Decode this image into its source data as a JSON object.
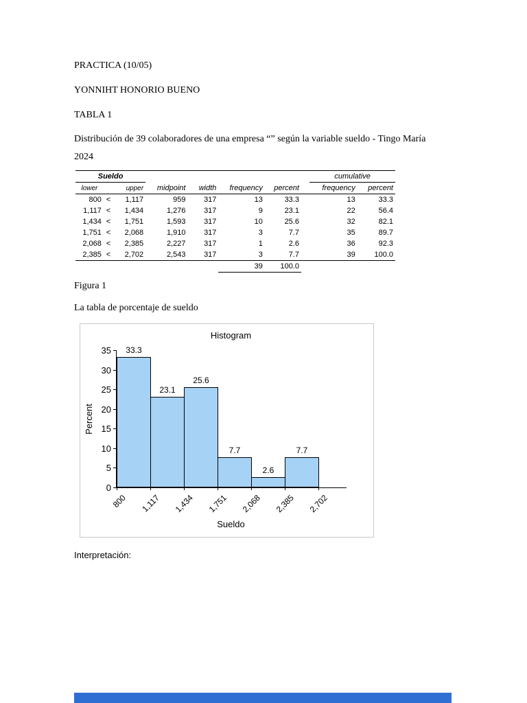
{
  "document": {
    "title": "PRACTICA (10/05)",
    "author": "YONNIHT HONORIO BUENO",
    "table_label": "TABLA 1",
    "description": "Distribución de 39 colaboradores de una empresa “” según la variable sueldo - Tingo María",
    "description_line2": "2024",
    "figure_label": "Figura 1",
    "figure_caption": "La tabla de porcentaje de sueldo",
    "interpretation_label": "Interpretación:"
  },
  "table": {
    "group_headers": {
      "sueldo": "Sueldo",
      "cumulative": "cumulative"
    },
    "headers": {
      "lower": "lower",
      "upper": "upper",
      "midpoint": "midpoint",
      "width": "width",
      "frequency": "frequency",
      "percent": "percent",
      "cum_frequency": "frequency",
      "cum_percent": "percent"
    },
    "rows": [
      {
        "lower": "800",
        "lt": "<",
        "upper": "1,117",
        "midpoint": "959",
        "width": "317",
        "frequency": "13",
        "percent": "33.3",
        "cum_frequency": "13",
        "cum_percent": "33.3"
      },
      {
        "lower": "1,117",
        "lt": "<",
        "upper": "1,434",
        "midpoint": "1,276",
        "width": "317",
        "frequency": "9",
        "percent": "23.1",
        "cum_frequency": "22",
        "cum_percent": "56.4"
      },
      {
        "lower": "1,434",
        "lt": "<",
        "upper": "1,751",
        "midpoint": "1,593",
        "width": "317",
        "frequency": "10",
        "percent": "25.6",
        "cum_frequency": "32",
        "cum_percent": "82.1"
      },
      {
        "lower": "1,751",
        "lt": "<",
        "upper": "2,068",
        "midpoint": "1,910",
        "width": "317",
        "frequency": "3",
        "percent": "7.7",
        "cum_frequency": "35",
        "cum_percent": "89.7"
      },
      {
        "lower": "2,068",
        "lt": "<",
        "upper": "2,385",
        "midpoint": "2,227",
        "width": "317",
        "frequency": "1",
        "percent": "2.6",
        "cum_frequency": "36",
        "cum_percent": "92.3"
      },
      {
        "lower": "2,385",
        "lt": "<",
        "upper": "2,702",
        "midpoint": "2,543",
        "width": "317",
        "frequency": "3",
        "percent": "7.7",
        "cum_frequency": "39",
        "cum_percent": "100.0"
      }
    ],
    "totals": {
      "frequency": "39",
      "percent": "100.0"
    }
  },
  "chart_data": {
    "type": "bar",
    "title": "Histogram",
    "xlabel": "Sueldo",
    "ylabel": "Percent",
    "ylim": [
      0,
      35
    ],
    "yticks": [
      0,
      5,
      10,
      15,
      20,
      25,
      30,
      35
    ],
    "bin_edges": [
      "800",
      "1,117",
      "1,434",
      "1,751",
      "2,068",
      "2,385",
      "2,702"
    ],
    "values": [
      33.3,
      23.1,
      25.6,
      7.7,
      2.6,
      7.7
    ],
    "bar_color": "#a6d2f5",
    "bar_border_color": "#000000",
    "grid": false,
    "legend": "none"
  },
  "footer": {
    "blue_bar_color": "#2e6fd3"
  }
}
